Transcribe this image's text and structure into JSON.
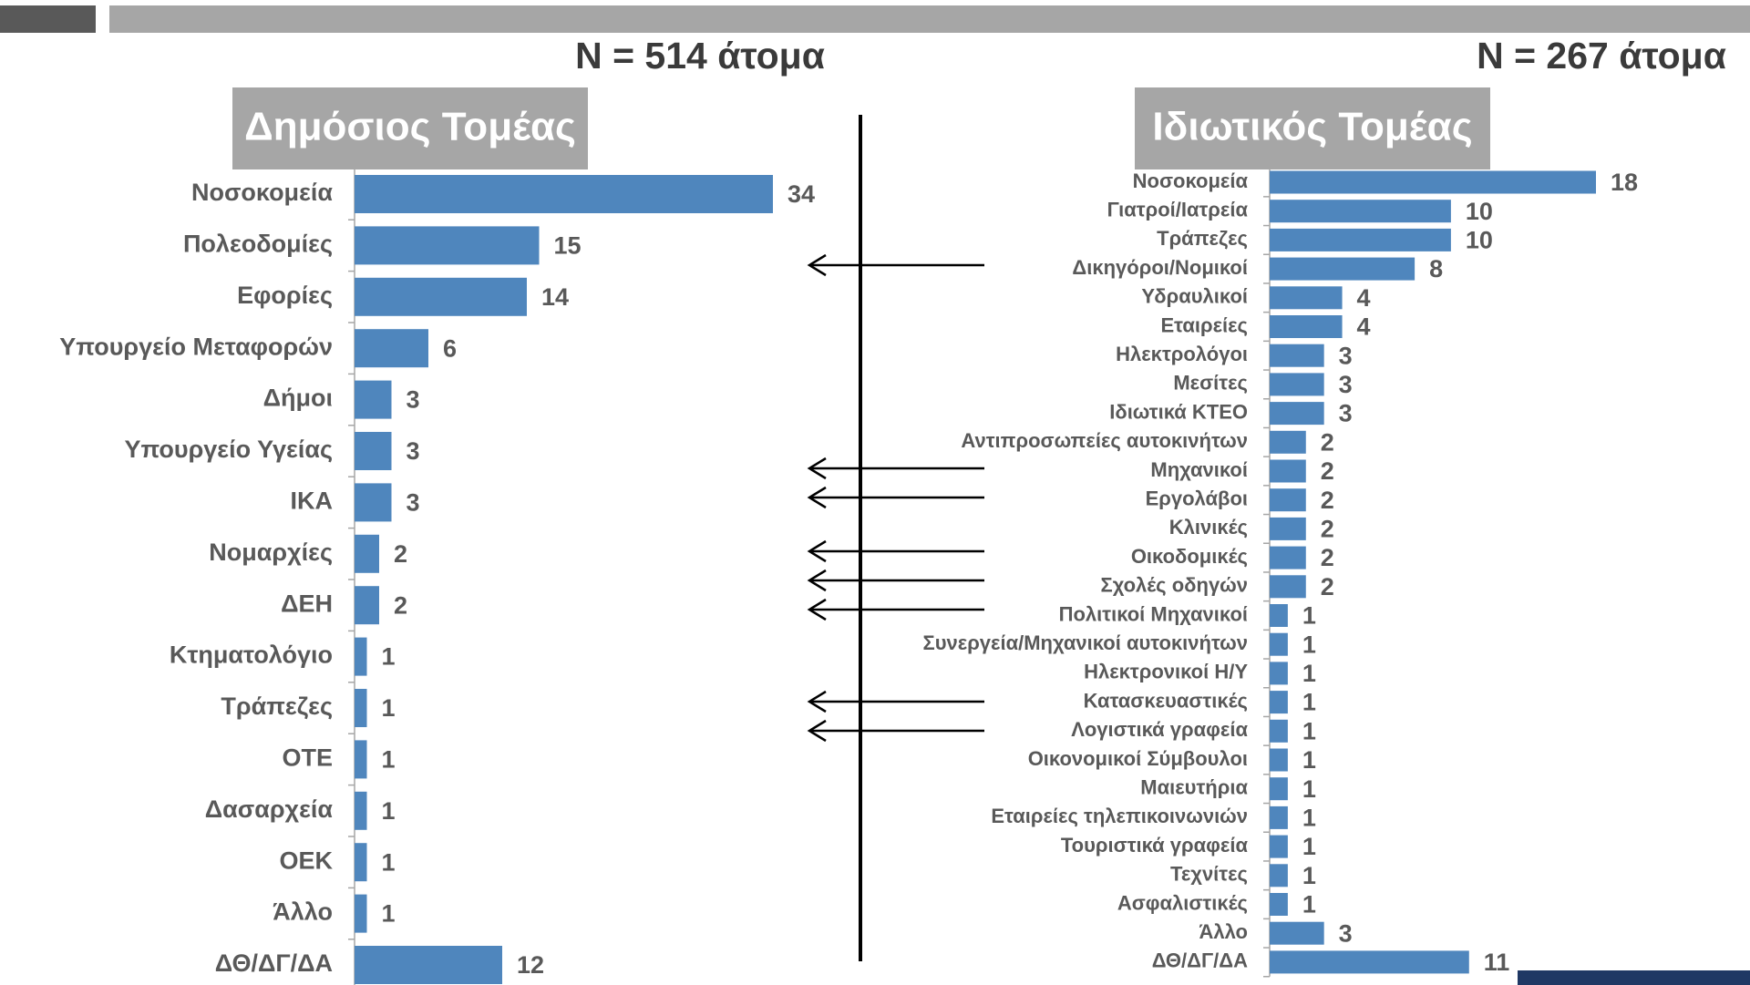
{
  "chart_data": [
    {
      "type": "hbar",
      "title": "N = 514 άτομα",
      "subtitle": "Δημόσιος Τομέας",
      "color": "#4f86bd",
      "categories": [
        "Νοσοκομεία",
        "Πολεοδομίες",
        "Εφορίες",
        "Υπουργείο Μεταφορών",
        "Δήμοι",
        "Υπουργείο Υγείας",
        "ΙΚΑ",
        "Νομαρχίες",
        "ΔΕΗ",
        "Κτηματολόγιο",
        "Τράπεζες",
        "ΟΤΕ",
        "Δασαρχεία",
        "ΟΕΚ",
        "Άλλο",
        "ΔΘ/ΔΓ/ΔΑ"
      ],
      "values": [
        34,
        15,
        14,
        6,
        3,
        3,
        3,
        2,
        2,
        1,
        1,
        1,
        1,
        1,
        1,
        12
      ]
    },
    {
      "type": "hbar",
      "title": "N = 267 άτομα",
      "subtitle": "Ιδιωτικός Τομέας",
      "color": "#4f86bd",
      "categories": [
        "Νοσοκομεία",
        "Γιατροί/Ιατρεία",
        "Τράπεζες",
        "Δικηγόροι/Νομικοί",
        "Υδραυλικοί",
        "Εταιρείες",
        "Ηλεκτρολόγοι",
        "Μεσίτες",
        "Ιδιωτικά ΚΤΕΟ",
        "Αντιπροσωπείες αυτοκινήτων",
        "Μηχανικοί",
        "Εργολάβοι",
        "Κλινικές",
        "Οικοδομικές",
        "Σχολές οδηγών",
        "Πολιτικοί Μηχανικοί",
        "Συνεργεία/Μηχανικοί αυτοκινήτων",
        "Ηλεκτρονικοί Η/Υ",
        "Κατασκευαστικές",
        "Λογιστικά γραφεία",
        "Οικονομικοί Σύμβουλοι",
        "Μαιευτήρια",
        "Εταιρείες τηλεπικοινωνιών",
        "Τουριστικά γραφεία",
        "Τεχνίτες",
        "Ασφαλιστικές",
        "Άλλο",
        "ΔΘ/ΔΓ/ΔΑ"
      ],
      "values": [
        18,
        10,
        10,
        8,
        4,
        4,
        3,
        3,
        3,
        2,
        2,
        2,
        2,
        2,
        2,
        1,
        1,
        1,
        1,
        1,
        1,
        1,
        1,
        1,
        1,
        1,
        3,
        11
      ]
    }
  ]
}
